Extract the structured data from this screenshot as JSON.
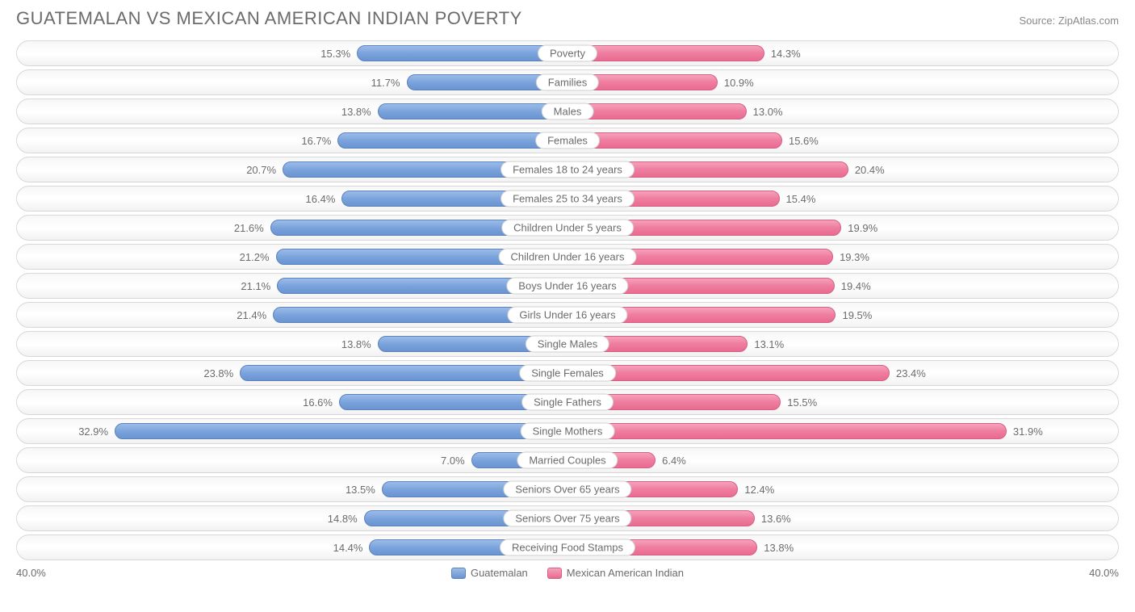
{
  "title": "GUATEMALAN VS MEXICAN AMERICAN INDIAN POVERTY",
  "source": "Source: ZipAtlas.com",
  "axis_max": 40.0,
  "axis_max_label": "40.0%",
  "colors": {
    "left_bar_top": "#9cbce8",
    "left_bar_bottom": "#6a94d0",
    "left_bar_border": "#5a82bd",
    "right_bar_top": "#f5a3bb",
    "right_bar_bottom": "#e96b91",
    "right_bar_border": "#d85d82",
    "track_border": "#d8d8d8",
    "text": "#6b6b6b",
    "background": "#ffffff"
  },
  "legend": {
    "left": "Guatemalan",
    "right": "Mexican American Indian"
  },
  "rows": [
    {
      "category": "Poverty",
      "left_value": 15.3,
      "left_label": "15.3%",
      "right_value": 14.3,
      "right_label": "14.3%"
    },
    {
      "category": "Families",
      "left_value": 11.7,
      "left_label": "11.7%",
      "right_value": 10.9,
      "right_label": "10.9%"
    },
    {
      "category": "Males",
      "left_value": 13.8,
      "left_label": "13.8%",
      "right_value": 13.0,
      "right_label": "13.0%"
    },
    {
      "category": "Females",
      "left_value": 16.7,
      "left_label": "16.7%",
      "right_value": 15.6,
      "right_label": "15.6%"
    },
    {
      "category": "Females 18 to 24 years",
      "left_value": 20.7,
      "left_label": "20.7%",
      "right_value": 20.4,
      "right_label": "20.4%"
    },
    {
      "category": "Females 25 to 34 years",
      "left_value": 16.4,
      "left_label": "16.4%",
      "right_value": 15.4,
      "right_label": "15.4%"
    },
    {
      "category": "Children Under 5 years",
      "left_value": 21.6,
      "left_label": "21.6%",
      "right_value": 19.9,
      "right_label": "19.9%"
    },
    {
      "category": "Children Under 16 years",
      "left_value": 21.2,
      "left_label": "21.2%",
      "right_value": 19.3,
      "right_label": "19.3%"
    },
    {
      "category": "Boys Under 16 years",
      "left_value": 21.1,
      "left_label": "21.1%",
      "right_value": 19.4,
      "right_label": "19.4%"
    },
    {
      "category": "Girls Under 16 years",
      "left_value": 21.4,
      "left_label": "21.4%",
      "right_value": 19.5,
      "right_label": "19.5%"
    },
    {
      "category": "Single Males",
      "left_value": 13.8,
      "left_label": "13.8%",
      "right_value": 13.1,
      "right_label": "13.1%"
    },
    {
      "category": "Single Females",
      "left_value": 23.8,
      "left_label": "23.8%",
      "right_value": 23.4,
      "right_label": "23.4%"
    },
    {
      "category": "Single Fathers",
      "left_value": 16.6,
      "left_label": "16.6%",
      "right_value": 15.5,
      "right_label": "15.5%"
    },
    {
      "category": "Single Mothers",
      "left_value": 32.9,
      "left_label": "32.9%",
      "right_value": 31.9,
      "right_label": "31.9%"
    },
    {
      "category": "Married Couples",
      "left_value": 7.0,
      "left_label": "7.0%",
      "right_value": 6.4,
      "right_label": "6.4%"
    },
    {
      "category": "Seniors Over 65 years",
      "left_value": 13.5,
      "left_label": "13.5%",
      "right_value": 12.4,
      "right_label": "12.4%"
    },
    {
      "category": "Seniors Over 75 years",
      "left_value": 14.8,
      "left_label": "14.8%",
      "right_value": 13.6,
      "right_label": "13.6%"
    },
    {
      "category": "Receiving Food Stamps",
      "left_value": 14.4,
      "left_label": "14.4%",
      "right_value": 13.8,
      "right_label": "13.8%"
    }
  ]
}
